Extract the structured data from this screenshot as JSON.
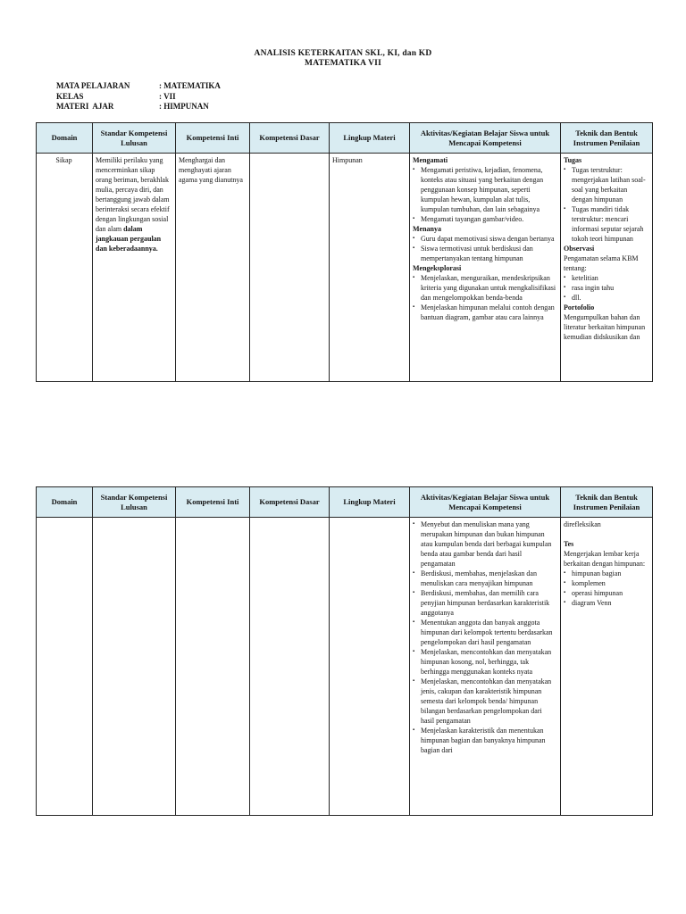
{
  "document": {
    "title": {
      "line1": "ANALISIS KETERKAITAN SKL, KI, dan KD",
      "line2": "MATEMATIKA VII"
    },
    "meta": [
      {
        "label": "MATA PELAJARAN",
        "value": ": MATEMATIKA"
      },
      {
        "label": "KELAS",
        "value": ": VII"
      },
      {
        "label": "MATERI  AJAR",
        "value": ": HIMPUNAN"
      }
    ],
    "bullet_char": "▪",
    "table_headers": [
      "Domain",
      "Standar Kompetensi Lulusan",
      "Kompetensi Inti",
      "Kompetensi Dasar",
      "Lingkup Materi",
      "Aktivitas/Kegiatan Belajar Siswa untuk Mencapai Kompetensi",
      "Teknik dan Bentuk Instrumen Penilaian"
    ],
    "header_bg_color": "#d9ecf2",
    "tables": [
      {
        "name": "skl-ki-kd-table-1",
        "row": {
          "domain": [
            {
              "t": "p",
              "x": "Sikap"
            }
          ],
          "skl": [
            {
              "t": "rich",
              "parts": [
                {
                  "b": false,
                  "x": "Memiliki perilaku yang mencerminkan sikap orang beriman, berakhlak mulia, percaya diri, dan bertanggung jawab dalam berinteraksi secara efektif dengan lingkungan sosial dan alam "
                },
                {
                  "b": true,
                  "x": "dalam jangkauan pergaulan dan keberadaannya."
                }
              ]
            }
          ],
          "ki": [
            {
              "t": "p",
              "x": "Menghargai dan menghayati ajaran agama yang dianutnya"
            }
          ],
          "kd": [],
          "lingkup": [
            {
              "t": "p",
              "x": "Himpunan"
            }
          ],
          "aktivitas": [
            {
              "t": "h",
              "x": "Mengamati"
            },
            {
              "t": "b",
              "x": "Mengamati peristiwa, kejadian, fenomena, konteks atau situasi yang berkaitan dengan penggunaan konsep himpunan, seperti kumpulan hewan, kumpulan alat tulis, kumpulan tumbuhan, dan lain sebagainya"
            },
            {
              "t": "b",
              "x": "Mengamati tayangan gambar/video."
            },
            {
              "t": "h",
              "x": "Menanya"
            },
            {
              "t": "b",
              "x": "Guru dapat memotivasi siswa dengan bertanya"
            },
            {
              "t": "b",
              "x": "Siswa termotivasi untuk berdiskusi dan mempertanyakan tentang himpunan"
            },
            {
              "t": "h",
              "x": "Mengeksplorasi"
            },
            {
              "t": "b",
              "x": "Menjelaskan, menguraikan, mendeskripsikan kriteria yang digunakan untuk mengkalisifikasi dan mengelompokkan benda-benda"
            },
            {
              "t": "b",
              "x": "Menjelaskan himpunan melalui contoh dengan bantuan diagram, gambar atau cara lainnya"
            }
          ],
          "teknik": [
            {
              "t": "h",
              "x": "Tugas"
            },
            {
              "t": "b",
              "x": "Tugas terstruktur: mengerjakan latihan soal-soal yang berkaitan dengan himpunan"
            },
            {
              "t": "b",
              "x": "Tugas mandiri tidak terstruktur: mencari informasi seputar sejarah tokoh teori himpunan"
            },
            {
              "t": "h",
              "x": "Observasi"
            },
            {
              "t": "p",
              "x": "Pengamatan selama KBM tentang:"
            },
            {
              "t": "b",
              "x": "ketelitian"
            },
            {
              "t": "b",
              "x": "rasa ingin tahu"
            },
            {
              "t": "b",
              "x": "dll."
            },
            {
              "t": "h",
              "x": "Portofolio"
            },
            {
              "t": "p",
              "x": "Mengumpulkan bahan dan literatur berkaitan himpunan kemudian didskusikan dan"
            }
          ]
        }
      },
      {
        "name": "skl-ki-kd-table-2",
        "row": {
          "domain": [],
          "skl": [],
          "ki": [],
          "kd": [],
          "lingkup": [],
          "aktivitas": [
            {
              "t": "b",
              "x": "Menyebut dan menuliskan mana yang merupakan himpunan dan bukan himpunan atau kumpulan benda dari berbagai kumpulan benda atau gambar benda dari hasil pengamatan"
            },
            {
              "t": "b",
              "x": "Berdiskusi, membahas, menjelaskan dan menuliskan cara menyajikan himpunan"
            },
            {
              "t": "b",
              "x": "Berdiskusi, membahas, dan memilih cara penyjian himpunan berdasarkan karakteristik anggotanya"
            },
            {
              "t": "b",
              "x": "Menentukan anggota dan banyak anggota himpunan dari kelompok tertentu berdasarkan pengelompokan dari hasil pengamatan"
            },
            {
              "t": "b",
              "x": "Menjelaskan, mencontohkan dan menyatakan himpunan kosong, nol, berhingga, tak berhingga menggunakan konteks nyata"
            },
            {
              "t": "b",
              "x": "Menjelaskan, mencontohkan dan menyatakan jenis, cakupan dan karakteristik himpunan semesta dari kelompok benda/ himpunan bilangan berdasarkan pengelompokan dari hasil pengamatan"
            },
            {
              "t": "b",
              "x": "Menjelaskan karakteristik dan menentukan himpunan bagian dan banyaknya himpunan bagian dari"
            }
          ],
          "teknik": [
            {
              "t": "p",
              "x": "direfleksikan"
            },
            {
              "t": "gap"
            },
            {
              "t": "h",
              "x": "Tes"
            },
            {
              "t": "p",
              "x": "Mengerjakan lembar kerja berkaitan dengan himpunan:"
            },
            {
              "t": "b",
              "x": "himpunan bagian"
            },
            {
              "t": "b",
              "x": "komplemen"
            },
            {
              "t": "b",
              "x": "operasi himpunan"
            },
            {
              "t": "b",
              "x": "diagram Venn"
            }
          ]
        }
      }
    ]
  }
}
